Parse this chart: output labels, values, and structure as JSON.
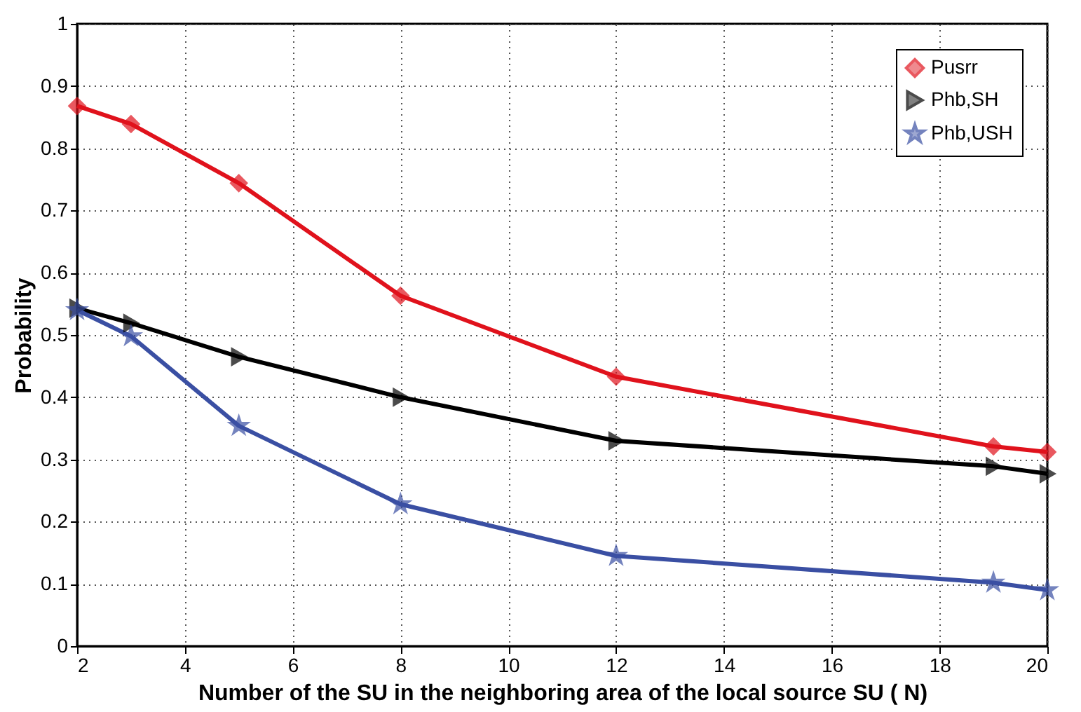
{
  "chart_data": {
    "type": "line",
    "xlabel": "Number of the SU in the neighboring area of the local source SU ( N)",
    "ylabel": "Probability",
    "xlim": [
      2,
      20
    ],
    "xticks": [
      2,
      4,
      6,
      8,
      10,
      12,
      14,
      16,
      18,
      20
    ],
    "ylim": [
      0,
      1
    ],
    "yticks": [
      0,
      0.1,
      0.2,
      0.3,
      0.4,
      0.5,
      0.6,
      0.7,
      0.8,
      0.9,
      1
    ],
    "grid": true,
    "legend": "top right",
    "line_style": "solid",
    "x": [
      2,
      3,
      5,
      8,
      12,
      19,
      20
    ],
    "series": [
      {
        "name": "Pusrr",
        "color": "#e0121c",
        "marker": "diamond",
        "values": [
          0.868,
          0.839,
          0.744,
          0.563,
          0.433,
          0.321,
          0.312
        ]
      },
      {
        "name": "Phb,SH",
        "color": "#000000",
        "marker": "triangle",
        "values": [
          0.543,
          0.519,
          0.465,
          0.4,
          0.33,
          0.289,
          0.277
        ]
      },
      {
        "name": "Phb,USH",
        "color": "#3a4fa3",
        "marker": "star",
        "values": [
          0.54,
          0.498,
          0.354,
          0.228,
          0.145,
          0.102,
          0.09
        ]
      }
    ]
  }
}
